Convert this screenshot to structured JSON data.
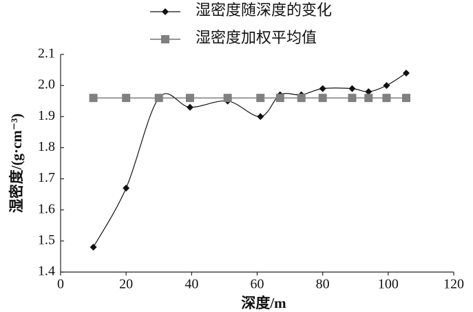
{
  "chart_data": {
    "type": "line",
    "x_label": "深度/m",
    "y_label": "湿密度/(g·cm⁻³)",
    "xlim": [
      0,
      120
    ],
    "xticks": [
      0,
      20,
      40,
      60,
      80,
      100,
      120
    ],
    "ylim": [
      1.4,
      2.1
    ],
    "yticks": [
      1.4,
      1.5,
      1.6,
      1.7,
      1.8,
      1.9,
      {
        "value": 2,
        "label": "2.0"
      },
      2.1
    ],
    "grid": false,
    "series": [
      {
        "name": "湿密度随深度的变化",
        "color": "#111111",
        "marker": "diamond",
        "x": [
          10,
          20,
          30,
          39.5,
          51,
          61,
          67,
          73.5,
          80,
          89,
          94,
          99.5,
          105.5
        ],
        "values": [
          1.48,
          1.67,
          1.96,
          1.93,
          1.95,
          1.9,
          1.97,
          1.97,
          1.99,
          1.99,
          1.98,
          2.0,
          2.04
        ]
      },
      {
        "name": "湿密度加权平均值",
        "color": "#808080",
        "marker": "square",
        "x": [
          10,
          20,
          30,
          39.5,
          51,
          61,
          67,
          73.5,
          80,
          89,
          94,
          99.5,
          105.5
        ],
        "values": [
          1.96,
          1.96,
          1.96,
          1.96,
          1.96,
          1.96,
          1.96,
          1.96,
          1.96,
          1.96,
          1.96,
          1.96,
          1.96
        ]
      }
    ]
  }
}
